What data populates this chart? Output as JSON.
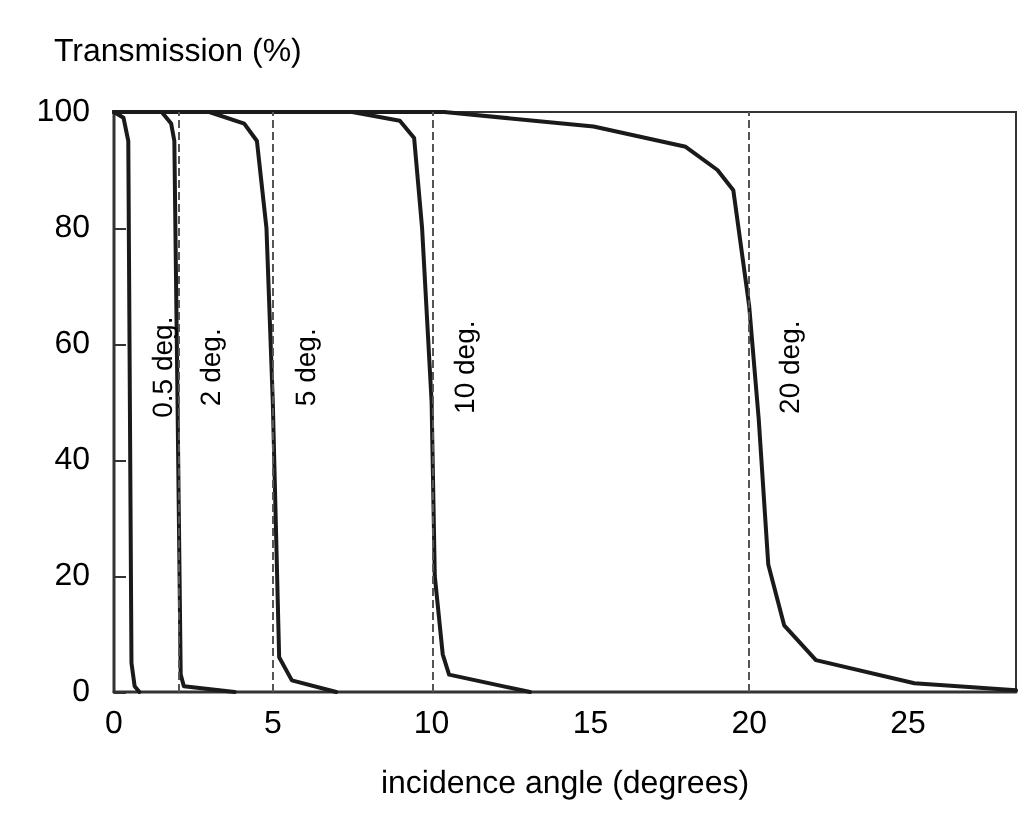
{
  "chart_data": {
    "type": "line",
    "xlabel": "incidence angle (degrees)",
    "ylabel": "Transmission (%)",
    "xlim": [
      0,
      28.4
    ],
    "xticks": [
      0,
      5,
      10,
      15,
      20,
      25
    ],
    "ylim": [
      0,
      100
    ],
    "yticks": [
      0,
      20,
      40,
      60,
      80,
      100
    ],
    "grid": false,
    "marker": "none",
    "line_style": "solid",
    "series": [
      {
        "color": "#1a1a1a",
        "x": [
          0,
          0.3,
          0.45,
          0.55,
          0.65,
          0.8
        ],
        "values": [
          100,
          99,
          95,
          5,
          1,
          0
        ]
      },
      {
        "color": "#1a1a1a",
        "x": [
          0,
          1.5,
          1.8,
          1.9,
          2.0,
          2.1,
          2.2,
          3.8
        ],
        "values": [
          100,
          100,
          98,
          95,
          50,
          3,
          1,
          0
        ]
      },
      {
        "color": "#1a1a1a",
        "x": [
          0,
          3,
          4.1,
          4.5,
          4.8,
          5.0,
          5.2,
          5.6,
          7.0
        ],
        "values": [
          100,
          100,
          98,
          95,
          80,
          50,
          6,
          2,
          0
        ]
      },
      {
        "color": "#1a1a1a",
        "x": [
          0,
          7.5,
          9,
          9.45,
          9.7,
          10.0,
          10.1,
          10.35,
          10.55,
          13.1
        ],
        "values": [
          100,
          100,
          98.5,
          95.5,
          80,
          50,
          20,
          6.5,
          3,
          0
        ]
      },
      {
        "color": "#1a1a1a",
        "x": [
          0,
          10.4,
          15.1,
          18,
          19,
          19.5,
          20,
          20.3,
          20.6,
          21.1,
          22.1,
          25.2,
          28.4
        ],
        "values": [
          100,
          100,
          97.5,
          94,
          90,
          86.5,
          66.5,
          47,
          22,
          11.5,
          5.5,
          1.5,
          0.3
        ]
      }
    ],
    "ref_lines": [
      {
        "axis": "x",
        "value": 2,
        "color": "#555555",
        "line_style": "dashed"
      },
      {
        "axis": "x",
        "value": 5,
        "color": "#555555",
        "line_style": "dashed"
      },
      {
        "axis": "x",
        "value": 10,
        "color": "#555555",
        "line_style": "dashed"
      },
      {
        "axis": "x",
        "value": 20,
        "color": "#555555",
        "line_style": "dashed"
      }
    ],
    "annotations": [
      "0.5 deg.",
      "2 deg.",
      "5 deg.",
      "10 deg.",
      "20 deg."
    ]
  }
}
